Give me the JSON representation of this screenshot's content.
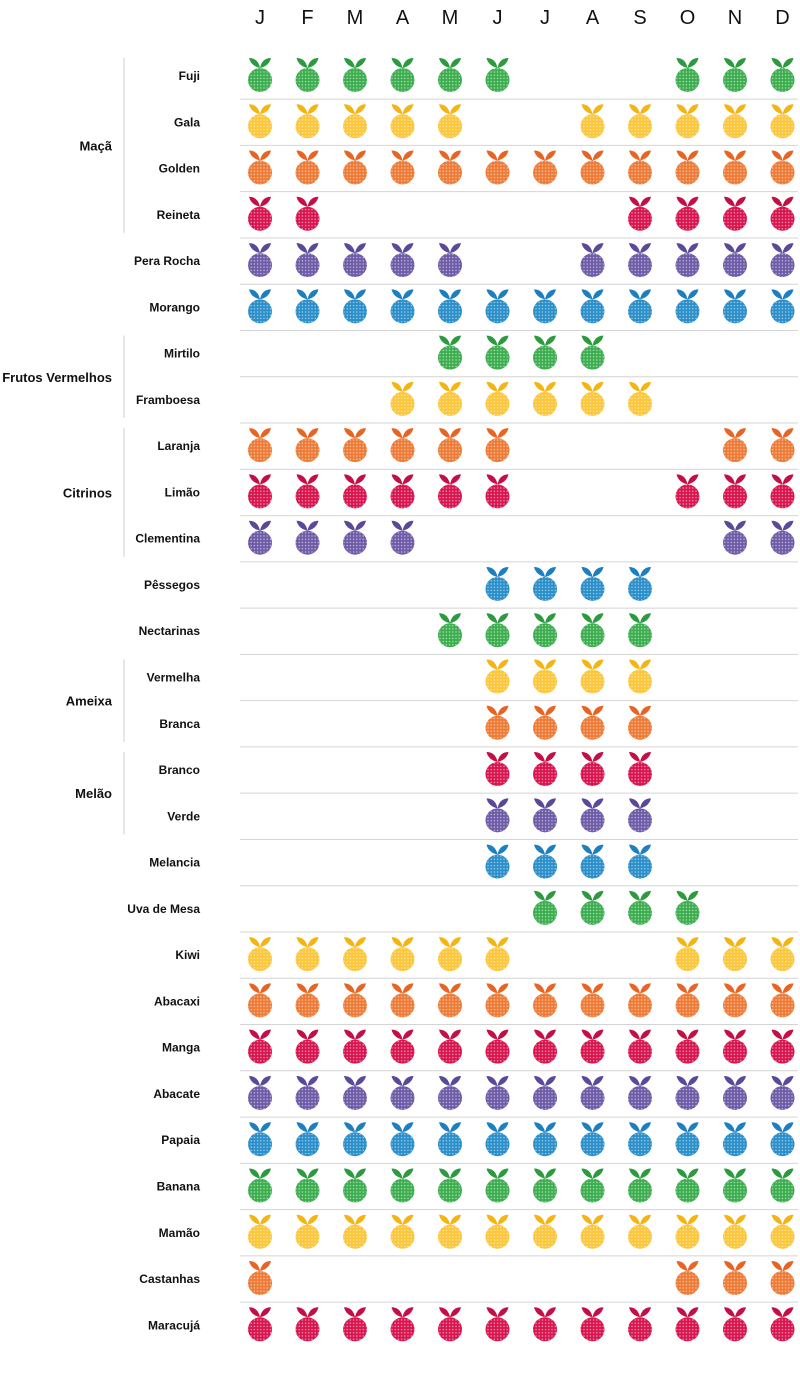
{
  "chart_data": {
    "type": "table",
    "months": [
      "J",
      "F",
      "M",
      "A",
      "M",
      "J",
      "J",
      "A",
      "S",
      "O",
      "N",
      "D"
    ],
    "palette": {
      "green": "#3cae4f",
      "yellow": "#fbc63a",
      "orange": "#ee7a35",
      "red": "#d8144e",
      "purple": "#6e5ba7",
      "blue": "#2a8ec9"
    },
    "leaf_colors": {
      "green": "#2c9a3e",
      "yellow": "#f4b412",
      "orange": "#e86422",
      "red": "#c40f45",
      "purple": "#5b4899",
      "blue": "#1c7fbf"
    },
    "groups": [
      {
        "name": "Maçã",
        "rows": [
          0,
          3
        ]
      },
      {
        "name": "Frutos Vermelhos",
        "rows": [
          6,
          7
        ]
      },
      {
        "name": "Citrinos",
        "rows": [
          8,
          10
        ]
      },
      {
        "name": "Ameixa",
        "rows": [
          13,
          14
        ]
      },
      {
        "name": "Melão",
        "rows": [
          15,
          16
        ]
      }
    ],
    "rows": [
      {
        "name": "Fuji",
        "color": "green",
        "months": [
          1,
          1,
          1,
          1,
          1,
          1,
          0,
          0,
          0,
          1,
          1,
          1
        ]
      },
      {
        "name": "Gala",
        "color": "yellow",
        "months": [
          1,
          1,
          1,
          1,
          1,
          0,
          0,
          1,
          1,
          1,
          1,
          1
        ]
      },
      {
        "name": "Golden",
        "color": "orange",
        "months": [
          1,
          1,
          1,
          1,
          1,
          1,
          1,
          1,
          1,
          1,
          1,
          1
        ]
      },
      {
        "name": "Reineta",
        "color": "red",
        "months": [
          1,
          1,
          0,
          0,
          0,
          0,
          0,
          0,
          1,
          1,
          1,
          1
        ]
      },
      {
        "name": "Pera Rocha",
        "color": "purple",
        "months": [
          1,
          1,
          1,
          1,
          1,
          0,
          0,
          1,
          1,
          1,
          1,
          1
        ]
      },
      {
        "name": "Morango",
        "color": "blue",
        "months": [
          1,
          1,
          1,
          1,
          1,
          1,
          1,
          1,
          1,
          1,
          1,
          1
        ]
      },
      {
        "name": "Mirtilo",
        "color": "green",
        "months": [
          0,
          0,
          0,
          0,
          1,
          1,
          1,
          1,
          0,
          0,
          0,
          0
        ]
      },
      {
        "name": "Framboesa",
        "color": "yellow",
        "months": [
          0,
          0,
          0,
          1,
          1,
          1,
          1,
          1,
          1,
          0,
          0,
          0
        ]
      },
      {
        "name": "Laranja",
        "color": "orange",
        "months": [
          1,
          1,
          1,
          1,
          1,
          1,
          0,
          0,
          0,
          0,
          1,
          1
        ]
      },
      {
        "name": "Limão",
        "color": "red",
        "months": [
          1,
          1,
          1,
          1,
          1,
          1,
          0,
          0,
          0,
          1,
          1,
          1
        ]
      },
      {
        "name": "Clementina",
        "color": "purple",
        "months": [
          1,
          1,
          1,
          1,
          0,
          0,
          0,
          0,
          0,
          0,
          1,
          1
        ]
      },
      {
        "name": "Pêssegos",
        "color": "blue",
        "months": [
          0,
          0,
          0,
          0,
          0,
          1,
          1,
          1,
          1,
          0,
          0,
          0
        ]
      },
      {
        "name": "Nectarinas",
        "color": "green",
        "months": [
          0,
          0,
          0,
          0,
          1,
          1,
          1,
          1,
          1,
          0,
          0,
          0
        ]
      },
      {
        "name": "Vermelha",
        "color": "yellow",
        "months": [
          0,
          0,
          0,
          0,
          0,
          1,
          1,
          1,
          1,
          0,
          0,
          0
        ]
      },
      {
        "name": "Branca",
        "color": "orange",
        "months": [
          0,
          0,
          0,
          0,
          0,
          1,
          1,
          1,
          1,
          0,
          0,
          0
        ]
      },
      {
        "name": "Branco",
        "color": "red",
        "months": [
          0,
          0,
          0,
          0,
          0,
          1,
          1,
          1,
          1,
          0,
          0,
          0
        ]
      },
      {
        "name": "Verde",
        "color": "purple",
        "months": [
          0,
          0,
          0,
          0,
          0,
          1,
          1,
          1,
          1,
          0,
          0,
          0
        ]
      },
      {
        "name": "Melancia",
        "color": "blue",
        "months": [
          0,
          0,
          0,
          0,
          0,
          1,
          1,
          1,
          1,
          0,
          0,
          0
        ]
      },
      {
        "name": "Uva de Mesa",
        "color": "green",
        "months": [
          0,
          0,
          0,
          0,
          0,
          0,
          1,
          1,
          1,
          1,
          0,
          0
        ]
      },
      {
        "name": "Kiwi",
        "color": "yellow",
        "months": [
          1,
          1,
          1,
          1,
          1,
          1,
          0,
          0,
          0,
          1,
          1,
          1
        ]
      },
      {
        "name": "Abacaxi",
        "color": "orange",
        "months": [
          1,
          1,
          1,
          1,
          1,
          1,
          1,
          1,
          1,
          1,
          1,
          1
        ]
      },
      {
        "name": "Manga",
        "color": "red",
        "months": [
          1,
          1,
          1,
          1,
          1,
          1,
          1,
          1,
          1,
          1,
          1,
          1
        ]
      },
      {
        "name": "Abacate",
        "color": "purple",
        "months": [
          1,
          1,
          1,
          1,
          1,
          1,
          1,
          1,
          1,
          1,
          1,
          1
        ]
      },
      {
        "name": "Papaia",
        "color": "blue",
        "months": [
          1,
          1,
          1,
          1,
          1,
          1,
          1,
          1,
          1,
          1,
          1,
          1
        ]
      },
      {
        "name": "Banana",
        "color": "green",
        "months": [
          1,
          1,
          1,
          1,
          1,
          1,
          1,
          1,
          1,
          1,
          1,
          1
        ]
      },
      {
        "name": "Mamão",
        "color": "yellow",
        "months": [
          1,
          1,
          1,
          1,
          1,
          1,
          1,
          1,
          1,
          1,
          1,
          1
        ]
      },
      {
        "name": "Castanhas",
        "color": "orange",
        "months": [
          1,
          0,
          0,
          0,
          0,
          0,
          0,
          0,
          0,
          1,
          1,
          1
        ]
      },
      {
        "name": "Maracujá",
        "color": "red",
        "months": [
          1,
          1,
          1,
          1,
          1,
          1,
          1,
          1,
          1,
          1,
          1,
          1
        ]
      }
    ]
  }
}
